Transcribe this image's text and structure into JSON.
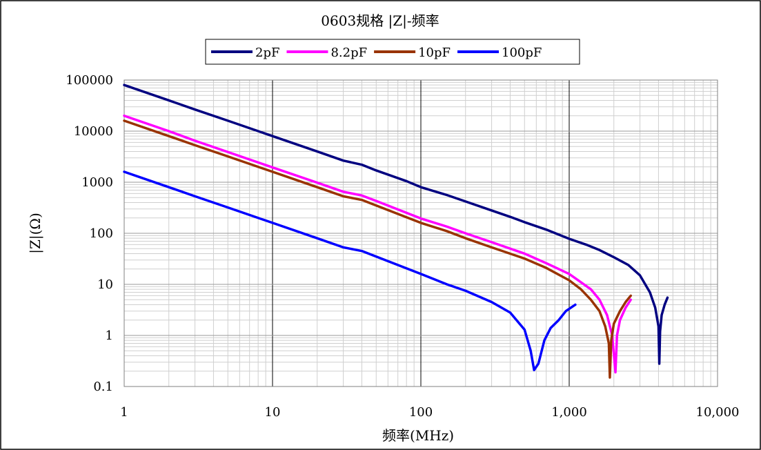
{
  "chart_data": {
    "type": "line",
    "title": "0603规格 |Z|-频率",
    "xlabel": "频率(MHz)",
    "ylabel": "|Z|(Ω)",
    "x_scale": "log",
    "y_scale": "log",
    "xlim": [
      1,
      10000
    ],
    "ylim": [
      0.1,
      100000
    ],
    "x_ticks": [
      1,
      10,
      100,
      1000,
      10000
    ],
    "x_tick_labels": [
      "1",
      "10",
      "100",
      "1,000",
      "10,000"
    ],
    "y_ticks": [
      0.1,
      1,
      10,
      100,
      1000,
      10000,
      100000
    ],
    "y_tick_labels": [
      "0.1",
      "1",
      "10",
      "100",
      "1000",
      "10000",
      "100000"
    ],
    "grid": "major and minor",
    "legend_position": "top",
    "series": [
      {
        "name": "2pF",
        "color": "#000080",
        "points": [
          [
            1,
            80000
          ],
          [
            2,
            40000
          ],
          [
            3,
            26500
          ],
          [
            5,
            16000
          ],
          [
            10,
            8000
          ],
          [
            20,
            4000
          ],
          [
            30,
            2650
          ],
          [
            40,
            2200
          ],
          [
            50,
            1700
          ],
          [
            80,
            1050
          ],
          [
            100,
            800
          ],
          [
            150,
            560
          ],
          [
            200,
            420
          ],
          [
            300,
            280
          ],
          [
            400,
            210
          ],
          [
            500,
            165
          ],
          [
            700,
            118
          ],
          [
            1000,
            78
          ],
          [
            1300,
            60
          ],
          [
            1600,
            47
          ],
          [
            2000,
            34
          ],
          [
            2500,
            24
          ],
          [
            3000,
            15
          ],
          [
            3500,
            7
          ],
          [
            3800,
            3.5
          ],
          [
            4000,
            1.5
          ],
          [
            4050,
            0.28
          ],
          [
            4100,
            1.2
          ],
          [
            4200,
            2.5
          ],
          [
            4400,
            4
          ],
          [
            4600,
            5.5
          ]
        ]
      },
      {
        "name": "8.2pF",
        "color": "#FF00FF",
        "points": [
          [
            1,
            20000
          ],
          [
            2,
            10000
          ],
          [
            3,
            6500
          ],
          [
            5,
            3900
          ],
          [
            10,
            1950
          ],
          [
            20,
            980
          ],
          [
            30,
            650
          ],
          [
            40,
            550
          ],
          [
            50,
            430
          ],
          [
            100,
            195
          ],
          [
            150,
            135
          ],
          [
            200,
            100
          ],
          [
            300,
            67
          ],
          [
            500,
            40
          ],
          [
            700,
            26
          ],
          [
            1000,
            16
          ],
          [
            1200,
            11
          ],
          [
            1400,
            8
          ],
          [
            1600,
            5
          ],
          [
            1800,
            2.5
          ],
          [
            1950,
            1
          ],
          [
            2050,
            0.19
          ],
          [
            2100,
            1
          ],
          [
            2200,
            2
          ],
          [
            2400,
            3.5
          ],
          [
            2600,
            5
          ]
        ]
      },
      {
        "name": "10pF",
        "color": "#993300",
        "points": [
          [
            1,
            16000
          ],
          [
            2,
            8000
          ],
          [
            3,
            5300
          ],
          [
            5,
            3200
          ],
          [
            10,
            1600
          ],
          [
            20,
            800
          ],
          [
            30,
            530
          ],
          [
            40,
            450
          ],
          [
            50,
            350
          ],
          [
            100,
            160
          ],
          [
            150,
            110
          ],
          [
            200,
            80
          ],
          [
            300,
            53
          ],
          [
            500,
            32
          ],
          [
            700,
            21
          ],
          [
            1000,
            12
          ],
          [
            1200,
            8
          ],
          [
            1400,
            5
          ],
          [
            1600,
            3
          ],
          [
            1750,
            1.5
          ],
          [
            1850,
            0.7
          ],
          [
            1880,
            0.15
          ],
          [
            1920,
            0.8
          ],
          [
            2000,
            1.7
          ],
          [
            2200,
            3
          ],
          [
            2400,
            4.5
          ],
          [
            2600,
            6
          ]
        ]
      },
      {
        "name": "100pF",
        "color": "#0000FF",
        "points": [
          [
            1,
            1600
          ],
          [
            2,
            800
          ],
          [
            3,
            530
          ],
          [
            5,
            320
          ],
          [
            10,
            160
          ],
          [
            20,
            80
          ],
          [
            30,
            53
          ],
          [
            40,
            45
          ],
          [
            50,
            35
          ],
          [
            100,
            16
          ],
          [
            150,
            10
          ],
          [
            200,
            7.5
          ],
          [
            300,
            4.5
          ],
          [
            400,
            2.8
          ],
          [
            500,
            1.3
          ],
          [
            550,
            0.5
          ],
          [
            580,
            0.21
          ],
          [
            620,
            0.28
          ],
          [
            680,
            0.8
          ],
          [
            750,
            1.4
          ],
          [
            850,
            2
          ],
          [
            950,
            3
          ],
          [
            1100,
            4
          ]
        ]
      }
    ]
  }
}
